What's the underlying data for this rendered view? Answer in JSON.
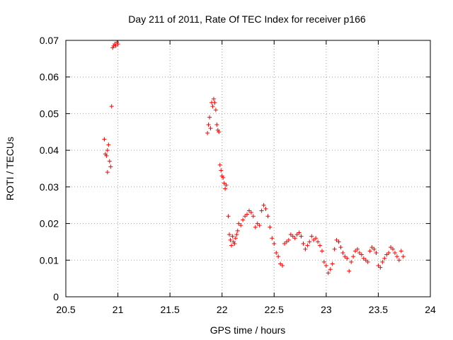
{
  "chart_data": {
    "type": "scatter",
    "title": "Day 211 of 2011, Rate Of TEC Index for receiver p166",
    "xlabel": "GPS time / hours",
    "ylabel": "ROTI / TECUs",
    "xlim": [
      20.5,
      24
    ],
    "ylim": [
      0,
      0.07
    ],
    "xticks": [
      20.5,
      21,
      21.5,
      22,
      22.5,
      23,
      23.5,
      24
    ],
    "xtick_labels": [
      "20.5",
      "21",
      "21.5",
      "22",
      "22.5",
      "23",
      "23.5",
      "24"
    ],
    "yticks": [
      0,
      0.01,
      0.02,
      0.03,
      0.04,
      0.05,
      0.06,
      0.07
    ],
    "ytick_labels": [
      "0",
      "0.01",
      "0.02",
      "0.03",
      "0.04",
      "0.05",
      "0.06",
      "0.07"
    ],
    "grid": true,
    "marker": "+",
    "color": "#ff0000",
    "series": [
      {
        "name": "p166",
        "x": [
          20.87,
          20.88,
          20.89,
          20.9,
          20.9,
          20.91,
          20.92,
          20.93,
          20.94,
          20.95,
          20.96,
          20.97,
          20.98,
          20.99,
          21.0,
          21.86,
          21.87,
          21.88,
          21.89,
          21.9,
          21.91,
          21.92,
          21.93,
          21.94,
          21.95,
          21.96,
          21.97,
          21.98,
          21.99,
          22.0,
          22.01,
          22.02,
          22.03,
          22.04,
          22.06,
          22.07,
          22.08,
          22.09,
          22.1,
          22.11,
          22.12,
          22.13,
          22.14,
          22.15,
          22.16,
          22.18,
          22.2,
          22.22,
          22.24,
          22.26,
          22.28,
          22.3,
          22.32,
          22.34,
          22.36,
          22.38,
          22.4,
          22.42,
          22.44,
          22.46,
          22.48,
          22.5,
          22.52,
          22.54,
          22.56,
          22.58,
          22.6,
          22.62,
          22.64,
          22.66,
          22.68,
          22.7,
          22.72,
          22.74,
          22.76,
          22.78,
          22.8,
          22.82,
          22.84,
          22.86,
          22.88,
          22.9,
          22.92,
          22.94,
          22.96,
          22.98,
          23.0,
          23.02,
          23.04,
          23.06,
          23.08,
          23.1,
          23.12,
          23.14,
          23.16,
          23.18,
          23.2,
          23.22,
          23.24,
          23.26,
          23.28,
          23.3,
          23.32,
          23.34,
          23.36,
          23.38,
          23.4,
          23.42,
          23.44,
          23.46,
          23.48,
          23.5,
          23.52,
          23.54,
          23.56,
          23.58,
          23.6,
          23.62,
          23.64,
          23.66,
          23.68,
          23.7,
          23.72,
          23.74
        ],
        "y": [
          0.043,
          0.039,
          0.0385,
          0.04,
          0.034,
          0.0415,
          0.037,
          0.0355,
          0.052,
          0.068,
          0.0685,
          0.069,
          0.0685,
          0.0695,
          0.069,
          0.0447,
          0.047,
          0.049,
          0.046,
          0.053,
          0.052,
          0.054,
          0.053,
          0.051,
          0.047,
          0.0455,
          0.045,
          0.036,
          0.0345,
          0.033,
          0.0325,
          0.031,
          0.0295,
          0.0305,
          0.022,
          0.017,
          0.0155,
          0.014,
          0.0165,
          0.015,
          0.0145,
          0.016,
          0.017,
          0.018,
          0.02,
          0.0195,
          0.021,
          0.022,
          0.0225,
          0.0235,
          0.023,
          0.022,
          0.019,
          0.02,
          0.0195,
          0.0235,
          0.025,
          0.024,
          0.022,
          0.019,
          0.016,
          0.0145,
          0.012,
          0.011,
          0.009,
          0.0085,
          0.0145,
          0.015,
          0.0155,
          0.017,
          0.0165,
          0.016,
          0.017,
          0.0175,
          0.0165,
          0.0145,
          0.013,
          0.014,
          0.015,
          0.0165,
          0.0155,
          0.016,
          0.015,
          0.014,
          0.0125,
          0.0095,
          0.0085,
          0.0065,
          0.0075,
          0.009,
          0.013,
          0.0155,
          0.015,
          0.0135,
          0.012,
          0.011,
          0.0105,
          0.007,
          0.0095,
          0.011,
          0.0125,
          0.013,
          0.012,
          0.0115,
          0.0105,
          0.01,
          0.0095,
          0.0125,
          0.0135,
          0.013,
          0.012,
          0.0085,
          0.008,
          0.0095,
          0.0105,
          0.0115,
          0.012,
          0.0135,
          0.013,
          0.012,
          0.011,
          0.01,
          0.0125,
          0.011
        ]
      }
    ]
  }
}
